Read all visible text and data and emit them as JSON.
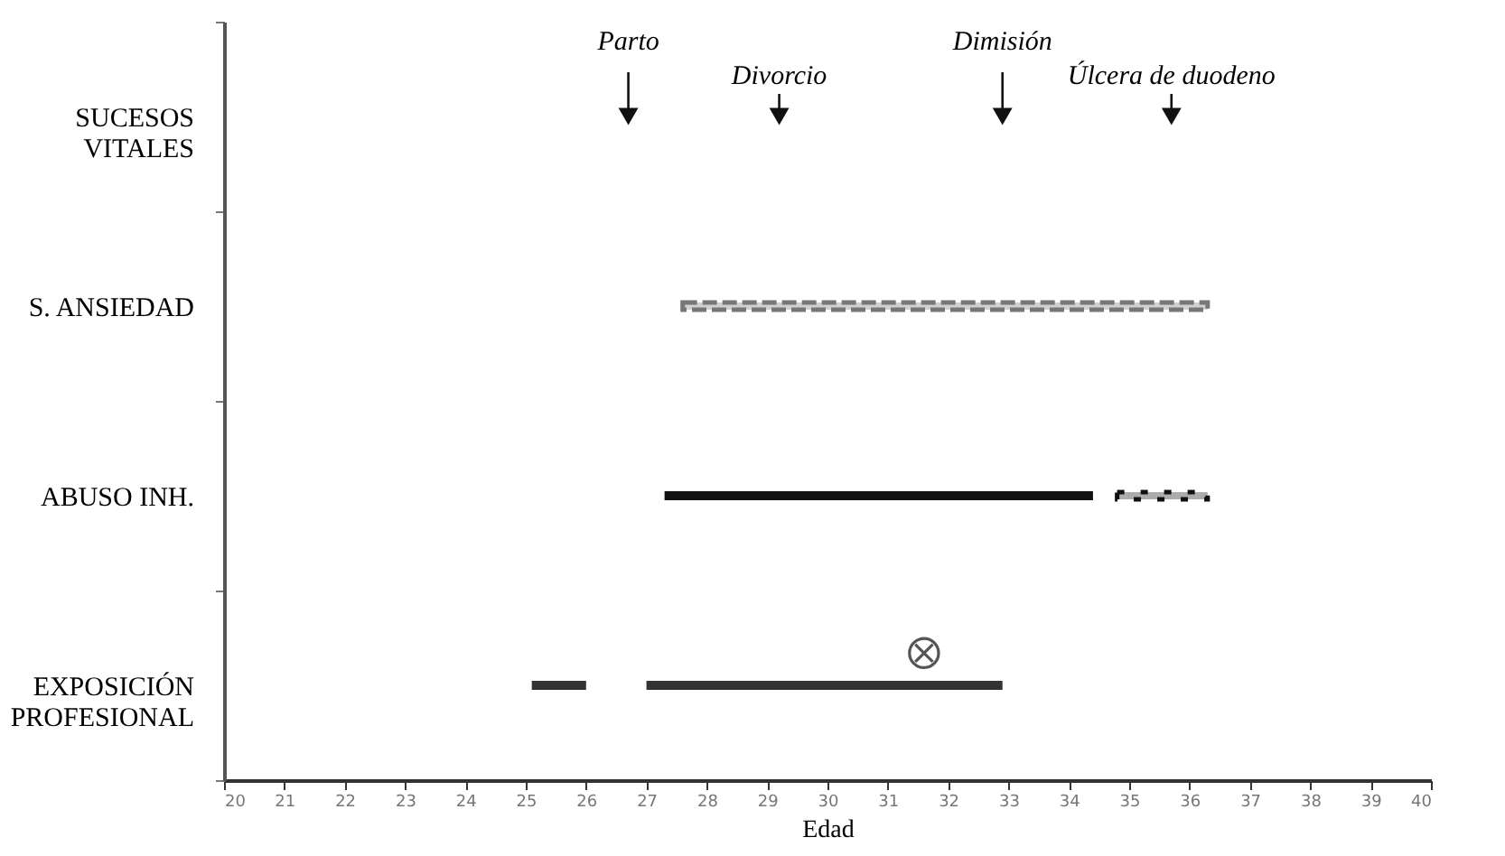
{
  "chart_data": {
    "type": "bar",
    "orientation": "horizontal",
    "xlabel": "Edad",
    "categories": [
      "SUCESOS VITALES",
      "S. ANSIEDAD",
      "ABUSO INH.",
      "EXPOSICIÓN PROFESIONAL"
    ],
    "xlim": [
      20,
      40
    ],
    "xticks": [
      20,
      21,
      22,
      23,
      24,
      25,
      26,
      27,
      28,
      29,
      30,
      31,
      32,
      33,
      34,
      35,
      36,
      37,
      38,
      39,
      40
    ],
    "series": [
      {
        "color": "#777777",
        "line_style": "dashed",
        "base": [
          null,
          27.6,
          null,
          null
        ],
        "values": [
          null,
          8.7,
          null,
          null
        ]
      },
      {
        "color": "#111111",
        "line_style": "solid",
        "base": [
          null,
          null,
          27.3,
          null
        ],
        "values": [
          null,
          null,
          7.1,
          null
        ]
      },
      {
        "color": "#111111",
        "line_style": "dotted",
        "base": [
          null,
          null,
          34.8,
          null
        ],
        "values": [
          null,
          null,
          1.5,
          null
        ]
      },
      {
        "color": "#333333",
        "line_style": "solid",
        "base": [
          null,
          null,
          null,
          25.1
        ],
        "values": [
          null,
          null,
          null,
          0.9
        ]
      },
      {
        "color": "#333333",
        "line_style": "solid",
        "base": [
          null,
          null,
          null,
          27.0
        ],
        "values": [
          null,
          null,
          null,
          5.9
        ]
      },
      {
        "type": "scatter",
        "marker": "triangle",
        "color": "#111111",
        "values": [
          26.7,
          null,
          null,
          null
        ]
      },
      {
        "type": "scatter",
        "marker": "triangle",
        "color": "#111111",
        "values": [
          29.2,
          null,
          null,
          null
        ]
      },
      {
        "type": "scatter",
        "marker": "triangle",
        "color": "#111111",
        "values": [
          32.9,
          null,
          null,
          null
        ]
      },
      {
        "type": "scatter",
        "marker": "triangle",
        "color": "#111111",
        "values": [
          35.7,
          null,
          null,
          null
        ]
      },
      {
        "type": "scatter",
        "marker": "cross",
        "color": "#555555",
        "values": [
          null,
          null,
          null,
          31.6
        ]
      }
    ],
    "annotations": [
      {
        "text": "Parto",
        "x": 26.7,
        "y": "SUCESOS VITALES"
      },
      {
        "text": "Divorcio",
        "x": 29.2,
        "y": "SUCESOS VITALES"
      },
      {
        "text": "Dimisión",
        "x": 32.9,
        "y": "SUCESOS VITALES"
      },
      {
        "text": "Úlcera de duodeno",
        "x": 35.7,
        "y": "SUCESOS VITALES"
      }
    ],
    "grid": false
  }
}
